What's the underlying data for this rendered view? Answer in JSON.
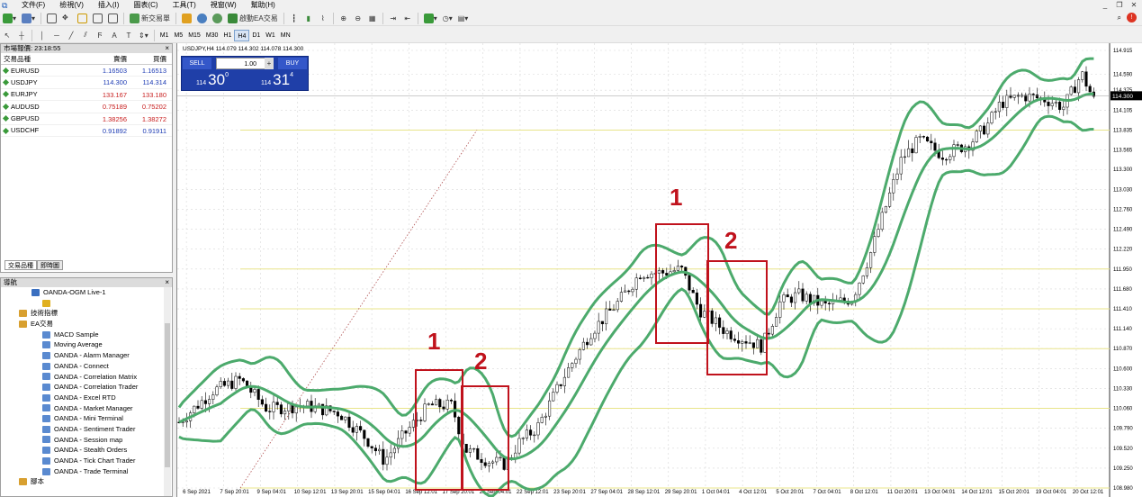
{
  "menu": {
    "items": [
      "文件(F)",
      "檢視(V)",
      "插入(I)",
      "圖表(C)",
      "工具(T)",
      "視窗(W)",
      "幫助(H)"
    ]
  },
  "toolbar": {
    "new_order": "新交易單",
    "expert": "啟動EA交易"
  },
  "timeframes": [
    "M1",
    "M5",
    "M15",
    "M30",
    "H1",
    "H4",
    "D1",
    "W1",
    "MN"
  ],
  "active_timeframe": "H4",
  "market_watch": {
    "title": "市場報價: 23:18:55",
    "headers": [
      "交易品種",
      "賣價",
      "買價"
    ],
    "rows": [
      {
        "symbol": "EURUSD",
        "bid": "1.16503",
        "ask": "1.16513",
        "color": "#1e3cb4"
      },
      {
        "symbol": "USDJPY",
        "bid": "114.300",
        "ask": "114.314",
        "color": "#1e3cb4"
      },
      {
        "symbol": "EURJPY",
        "bid": "133.167",
        "ask": "133.180",
        "color": "#c81e1e"
      },
      {
        "symbol": "AUDUSD",
        "bid": "0.75189",
        "ask": "0.75202",
        "color": "#c81e1e"
      },
      {
        "symbol": "GBPUSD",
        "bid": "1.38256",
        "ask": "1.38272",
        "color": "#c81e1e"
      },
      {
        "symbol": "USDCHF",
        "bid": "0.91892",
        "ask": "0.91911",
        "color": "#1e3cb4"
      }
    ],
    "tabs": [
      "交易品種",
      "即時圖"
    ]
  },
  "navigator": {
    "title": "導航",
    "items": [
      {
        "label": "OANDA-OGM Live-1",
        "indent": 34
      },
      {
        "label": "",
        "indent": 46
      },
      {
        "label": "技術指標",
        "indent": 20
      },
      {
        "label": "EA交易",
        "indent": 20
      },
      {
        "label": "MACD Sample",
        "indent": 46
      },
      {
        "label": "Moving Average",
        "indent": 46
      },
      {
        "label": "OANDA - Alarm Manager",
        "indent": 46
      },
      {
        "label": "OANDA - Connect",
        "indent": 46
      },
      {
        "label": "OANDA - Correlation Matrix",
        "indent": 46
      },
      {
        "label": "OANDA - Correlation Trader",
        "indent": 46
      },
      {
        "label": "OANDA - Excel RTD",
        "indent": 46
      },
      {
        "label": "OANDA - Market Manager",
        "indent": 46
      },
      {
        "label": "OANDA - Mini Terminal",
        "indent": 46
      },
      {
        "label": "OANDA - Sentiment Trader",
        "indent": 46
      },
      {
        "label": "OANDA - Session map",
        "indent": 46
      },
      {
        "label": "OANDA - Stealth Orders",
        "indent": 46
      },
      {
        "label": "OANDA - Tick Chart Trader",
        "indent": 46
      },
      {
        "label": "OANDA - Trade Terminal",
        "indent": 46
      },
      {
        "label": "腳本",
        "indent": 20
      }
    ]
  },
  "chart": {
    "symbol_line": "USDJPY,H4 114.079 114.302 114.078 114.300",
    "current_price": "114.300",
    "trade_panel": {
      "sell": "SELL",
      "buy": "BUY",
      "lot": "1.00",
      "sell_big": "114",
      "sell_main": "30",
      "sell_sup": "0",
      "buy_big": "114",
      "buy_main": "31",
      "buy_sup": "4"
    },
    "price_labels": [
      "114.915",
      "114.590",
      "114.375",
      "114.105",
      "113.835",
      "113.565",
      "113.300",
      "113.030",
      "112.760",
      "112.490",
      "112.220",
      "111.950",
      "111.680",
      "111.410",
      "111.140",
      "110.870",
      "110.600",
      "110.330",
      "110.060",
      "109.790",
      "109.520",
      "109.250",
      "108.980"
    ],
    "date_labels": [
      "6 Sep 2021",
      "7 Sep 20:01",
      "9 Sep 04:01",
      "10 Sep 12:01",
      "13 Sep 20:01",
      "15 Sep 04:01",
      "16 Sep 12:01",
      "17 Sep 20:01",
      "21 Sep 04:01",
      "22 Sep 12:01",
      "23 Sep 20:01",
      "27 Sep 04:01",
      "28 Sep 12:01",
      "29 Sep 20:01",
      "1 Oct 04:01",
      "4 Oct 12:01",
      "5 Oct 20:01",
      "7 Oct 04:01",
      "8 Oct 12:01",
      "11 Oct 20:01",
      "13 Oct 04:01",
      "14 Oct 12:01",
      "15 Oct 20:01",
      "19 Oct 04:01",
      "20 Oct 12:01"
    ],
    "annotations": [
      "1",
      "2",
      "1",
      "2"
    ],
    "colors": {
      "band": "#4caa6c",
      "box": "#c0121c",
      "candle": "#000000",
      "hline": "#e8e48a",
      "trend": "#b05050"
    }
  }
}
